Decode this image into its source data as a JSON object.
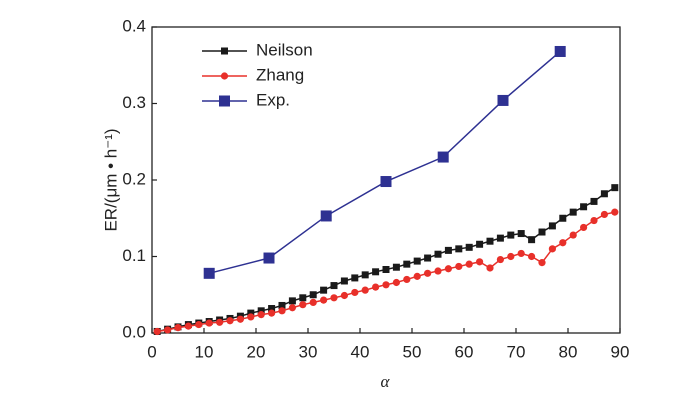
{
  "chart_data": {
    "type": "line",
    "xlabel": "α",
    "ylabel": "ER/(μm • h⁻¹)",
    "xlim": [
      0,
      90
    ],
    "xticks": [
      0,
      10,
      20,
      30,
      40,
      50,
      60,
      70,
      80,
      90
    ],
    "ylim": [
      0,
      0.4
    ],
    "yticks": [
      {
        "value": 0,
        "label": "0.0"
      },
      0.1,
      0.2,
      0.3,
      0.4
    ],
    "legend": "upper left",
    "series": [
      {
        "name": "Neilson",
        "color": "#1a1a1a",
        "marker": "square",
        "x": [
          1,
          3,
          5,
          7,
          9,
          11,
          13,
          15,
          17,
          19,
          21,
          23,
          25,
          27,
          29,
          31,
          33,
          35,
          37,
          39,
          41,
          43,
          45,
          47,
          49,
          51,
          53,
          55,
          57,
          59,
          61,
          63,
          65,
          67,
          69,
          71,
          73,
          75,
          77,
          79,
          81,
          83,
          85,
          87,
          89
        ],
        "values": [
          0.002,
          0.005,
          0.008,
          0.011,
          0.013,
          0.015,
          0.017,
          0.019,
          0.022,
          0.026,
          0.029,
          0.032,
          0.036,
          0.042,
          0.046,
          0.05,
          0.056,
          0.062,
          0.068,
          0.072,
          0.076,
          0.08,
          0.083,
          0.086,
          0.09,
          0.094,
          0.098,
          0.103,
          0.108,
          0.11,
          0.112,
          0.116,
          0.12,
          0.124,
          0.128,
          0.13,
          0.122,
          0.132,
          0.14,
          0.15,
          0.158,
          0.165,
          0.172,
          0.182,
          0.19
        ]
      },
      {
        "name": "Zhang",
        "color": "#e8302a",
        "marker": "circle",
        "x": [
          1,
          3,
          5,
          7,
          9,
          11,
          13,
          15,
          17,
          19,
          21,
          23,
          25,
          27,
          29,
          31,
          33,
          35,
          37,
          39,
          41,
          43,
          45,
          47,
          49,
          51,
          53,
          55,
          57,
          59,
          61,
          63,
          65,
          67,
          69,
          71,
          73,
          75,
          77,
          79,
          81,
          83,
          85,
          87,
          89
        ],
        "values": [
          0.002,
          0.004,
          0.007,
          0.009,
          0.011,
          0.013,
          0.014,
          0.016,
          0.018,
          0.021,
          0.024,
          0.026,
          0.029,
          0.033,
          0.037,
          0.04,
          0.043,
          0.046,
          0.049,
          0.053,
          0.056,
          0.06,
          0.063,
          0.066,
          0.07,
          0.074,
          0.078,
          0.081,
          0.084,
          0.087,
          0.09,
          0.093,
          0.085,
          0.096,
          0.1,
          0.104,
          0.1,
          0.092,
          0.11,
          0.118,
          0.128,
          0.138,
          0.147,
          0.155,
          0.158
        ]
      },
      {
        "name": "Exp.",
        "color": "#2e3192",
        "marker": "bigsquare",
        "x": [
          11,
          22.5,
          33.5,
          45,
          56,
          67.5,
          78.5
        ],
        "values": [
          0.078,
          0.098,
          0.153,
          0.198,
          0.23,
          0.304,
          0.368
        ]
      }
    ]
  }
}
